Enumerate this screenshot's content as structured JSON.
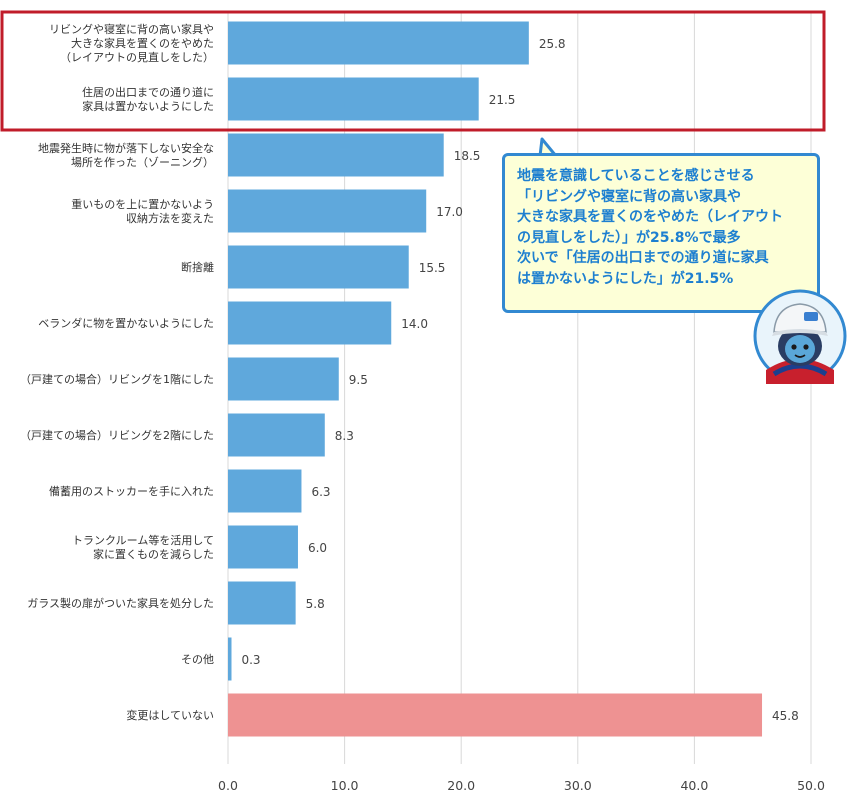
{
  "chart_data": {
    "type": "bar",
    "orientation": "horizontal",
    "categories": [
      [
        "リビングや寝室に背の高い家具や",
        "大きな家具を置くのをやめた",
        "（レイアウトの見直しをした）"
      ],
      [
        "住居の出口までの通り道に",
        "家具は置かないようにした"
      ],
      [
        "地震発生時に物が落下しない安全な",
        "場所を作った（ゾーニング）"
      ],
      [
        "重いものを上に置かないよう",
        "収納方法を変えた"
      ],
      [
        "断捨離"
      ],
      [
        "ベランダに物を置かないようにした"
      ],
      [
        "（戸建ての場合）リビングを1階にした"
      ],
      [
        "（戸建ての場合）リビングを2階にした"
      ],
      [
        "備蓄用のストッカーを手に入れた"
      ],
      [
        "トランクルーム等を活用して",
        "家に置くものを減らした"
      ],
      [
        "ガラス製の扉がついた家具を処分した"
      ],
      [
        "その他"
      ],
      [
        "変更はしていない"
      ]
    ],
    "values": [
      25.8,
      21.5,
      18.5,
      17.0,
      15.5,
      14.0,
      9.5,
      8.3,
      6.3,
      6.0,
      5.8,
      0.3,
      45.8
    ],
    "value_labels": [
      "25.8",
      "21.5",
      "18.5",
      "17.0",
      "15.5",
      "14.0",
      "9.5",
      "8.3",
      "6.3",
      "6.0",
      "5.8",
      "0.3",
      "45.8"
    ],
    "xlim": [
      0,
      50
    ],
    "xticks": [
      "0.0",
      "10.0",
      "20.0",
      "30.0",
      "40.0",
      "50.0"
    ],
    "grid": true,
    "title": "",
    "xlabel": "",
    "ylabel": "",
    "colors": {
      "bar": "#5fa8dc",
      "highlight_bar": "#ee9292",
      "highlight_box": "#c01c2a",
      "grid": "#d8d8d8"
    },
    "highlighted_category_index": 12,
    "boxed_category_indices": [
      0,
      1
    ]
  },
  "callout": {
    "lines": [
      "地震を意識していることを感じさせる",
      "「リビングや寝室に背の高い家具や",
      "大きな家具を置くのをやめた（レイアウト",
      "の見直しをした）」が25.8%で最多",
      "次いで「住居の出口までの通り道に家具",
      "は置かないようにした」が21.5%"
    ],
    "border_color": "#3289d1",
    "background": "#fdffd7",
    "text_color": "#1d7fd0"
  },
  "mascot": {
    "icon": "mascot-character-icon"
  }
}
